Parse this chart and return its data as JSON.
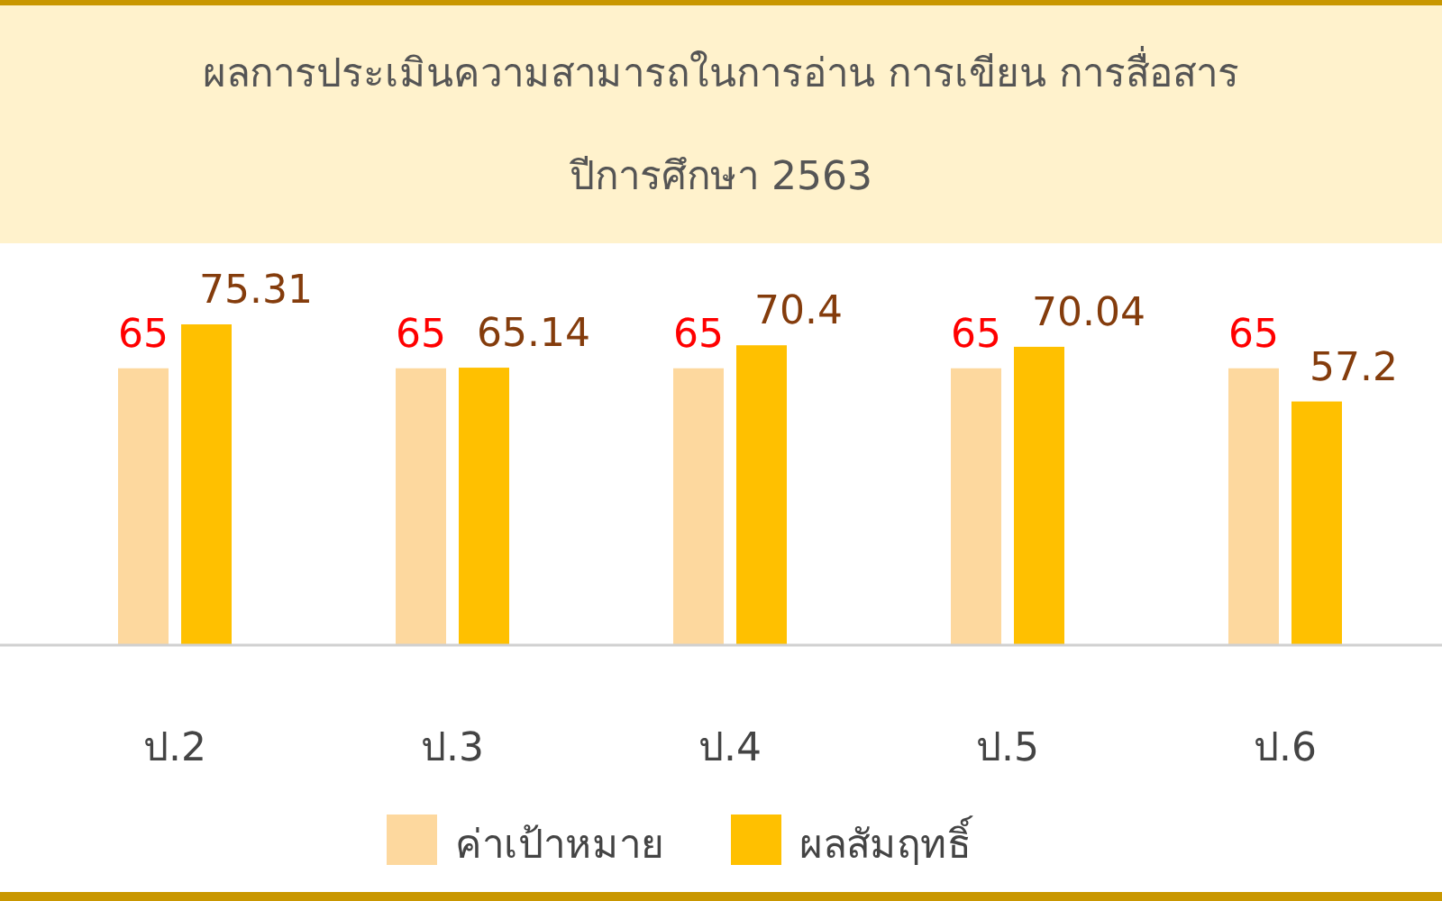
{
  "chart_data": {
    "type": "bar",
    "title": "ผลการประเมินความสามารถในการอ่าน การเขียน การสื่อสาร",
    "subtitle": "ปีการศึกษา 2563",
    "categories": [
      "ป.2",
      "ป.3",
      "ป.4",
      "ป.5",
      "ป.6"
    ],
    "series": [
      {
        "name": "ค่าเป้าหมาย",
        "color": "#fdd89e",
        "values": [
          65,
          65,
          65,
          65,
          65
        ],
        "value_labels": [
          "65",
          "65",
          "65",
          "65",
          "65"
        ]
      },
      {
        "name": "ผลสัมฤทธิ์",
        "color": "#ffc000",
        "values": [
          75.31,
          65.14,
          70.4,
          70.04,
          57.2
        ],
        "value_labels": [
          "75.31",
          "65.14",
          "70.4",
          "70.04",
          "57.2"
        ]
      }
    ],
    "legend": "bottom"
  }
}
